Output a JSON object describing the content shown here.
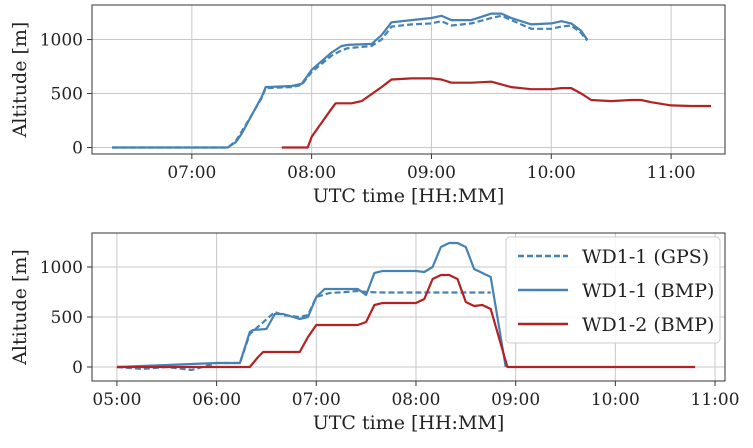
{
  "colors": {
    "blue": "#4682b4",
    "red": "#b22222",
    "grid": "#c8c8c8",
    "axis": "#333333"
  },
  "chart_data": [
    {
      "type": "line",
      "xlabel": "UTC time [HH:MM]",
      "ylabel": "Altitude [m]",
      "xlim": [
        "06:10",
        "11:27"
      ],
      "ylim": [
        -60,
        1320
      ],
      "xticks": [
        "07:00",
        "08:00",
        "09:00",
        "10:00",
        "11:00"
      ],
      "yticks": [
        0,
        500,
        1000
      ],
      "grid": true,
      "series": [
        {
          "name": "WD1-1 (GPS)",
          "color": "blue",
          "dash": true,
          "x": [
            "06:20",
            "07:18",
            "07:22",
            "07:25",
            "07:30",
            "07:35",
            "07:37",
            "07:50",
            "07:55",
            "08:00",
            "08:10",
            "08:15",
            "08:18",
            "08:30",
            "08:35",
            "08:40",
            "08:50",
            "09:00",
            "09:05",
            "09:10",
            "09:20",
            "09:30",
            "09:35",
            "09:40",
            "09:50",
            "10:00",
            "10:05",
            "10:10",
            "10:15",
            "10:18"
          ],
          "y": [
            0,
            0,
            60,
            150,
            300,
            460,
            550,
            560,
            580,
            700,
            850,
            900,
            920,
            940,
            1000,
            1120,
            1140,
            1150,
            1170,
            1130,
            1150,
            1200,
            1220,
            1180,
            1100,
            1100,
            1120,
            1130,
            1060,
            990
          ]
        },
        {
          "name": "WD1-1 (BMP)",
          "color": "blue",
          "dash": false,
          "x": [
            "06:20",
            "07:18",
            "07:22",
            "07:25",
            "07:30",
            "07:35",
            "07:37",
            "07:50",
            "07:55",
            "08:00",
            "08:10",
            "08:15",
            "08:18",
            "08:30",
            "08:35",
            "08:40",
            "08:50",
            "09:00",
            "09:05",
            "09:10",
            "09:20",
            "09:30",
            "09:35",
            "09:40",
            "09:50",
            "10:00",
            "10:05",
            "10:10",
            "10:15",
            "10:18"
          ],
          "y": [
            0,
            0,
            50,
            130,
            300,
            470,
            560,
            570,
            590,
            720,
            880,
            940,
            950,
            960,
            1040,
            1160,
            1180,
            1200,
            1220,
            1180,
            1180,
            1240,
            1240,
            1200,
            1140,
            1150,
            1170,
            1150,
            1080,
            1000
          ]
        },
        {
          "name": "WD1-2 (BMP)",
          "color": "red",
          "dash": false,
          "x": [
            "07:45",
            "07:58",
            "08:00",
            "08:05",
            "08:10",
            "08:12",
            "08:20",
            "08:25",
            "08:35",
            "08:40",
            "08:50",
            "09:00",
            "09:05",
            "09:10",
            "09:20",
            "09:30",
            "09:40",
            "09:50",
            "10:00",
            "10:05",
            "10:10",
            "10:15",
            "10:20",
            "10:30",
            "10:40",
            "10:45",
            "10:50",
            "11:00",
            "11:10",
            "11:20"
          ],
          "y": [
            0,
            0,
            100,
            230,
            360,
            410,
            410,
            430,
            560,
            630,
            640,
            640,
            630,
            600,
            600,
            610,
            560,
            540,
            540,
            550,
            550,
            500,
            440,
            430,
            440,
            440,
            420,
            390,
            385,
            385
          ]
        }
      ]
    },
    {
      "type": "line",
      "xlabel": "UTC time [HH:MM]",
      "ylabel": "Altitude [m]",
      "xlim": [
        "04:45",
        "11:06"
      ],
      "ylim": [
        -140,
        1340
      ],
      "xticks": [
        "05:00",
        "06:00",
        "07:00",
        "08:00",
        "09:00",
        "10:00",
        "11:00"
      ],
      "yticks": [
        0,
        500,
        1000
      ],
      "grid": true,
      "legend": "top-right",
      "series": [
        {
          "name": "WD1-1 (GPS)",
          "color": "blue",
          "dash": true,
          "x": [
            "05:00",
            "05:15",
            "05:30",
            "05:45",
            "06:00",
            "06:14",
            "06:20",
            "06:22",
            "06:35",
            "06:40",
            "06:50",
            "06:55",
            "07:00",
            "07:08",
            "07:18",
            "07:25",
            "07:30",
            "07:40",
            "08:00",
            "08:30",
            "08:45"
          ],
          "y": [
            0,
            -20,
            0,
            -30,
            40,
            40,
            330,
            360,
            550,
            520,
            500,
            520,
            700,
            740,
            750,
            760,
            750,
            745,
            745,
            745,
            745
          ]
        },
        {
          "name": "WD1-1 (BMP)",
          "color": "blue",
          "dash": false,
          "x": [
            "05:00",
            "06:00",
            "06:14",
            "06:20",
            "06:22",
            "06:30",
            "06:35",
            "06:40",
            "06:50",
            "06:55",
            "07:00",
            "07:05",
            "07:25",
            "07:30",
            "07:35",
            "07:40",
            "07:55",
            "08:00",
            "08:05",
            "08:10",
            "08:15",
            "08:20",
            "08:25",
            "08:30",
            "08:35",
            "08:40",
            "08:45",
            "08:52",
            "08:54"
          ],
          "y": [
            0,
            40,
            40,
            350,
            370,
            380,
            530,
            530,
            480,
            500,
            700,
            780,
            780,
            720,
            940,
            960,
            960,
            960,
            950,
            1000,
            1200,
            1240,
            1240,
            1200,
            980,
            940,
            900,
            200,
            0
          ]
        },
        {
          "name": "WD1-2 (BMP)",
          "color": "red",
          "dash": false,
          "x": [
            "05:00",
            "06:20",
            "06:25",
            "06:28",
            "06:50",
            "06:55",
            "07:00",
            "07:05",
            "07:25",
            "07:30",
            "07:35",
            "07:40",
            "08:00",
            "08:05",
            "08:10",
            "08:15",
            "08:20",
            "08:25",
            "08:30",
            "08:35",
            "08:40",
            "08:45",
            "08:55",
            "09:00",
            "10:48"
          ],
          "y": [
            0,
            0,
            100,
            150,
            150,
            300,
            420,
            420,
            420,
            450,
            620,
            640,
            640,
            680,
            880,
            920,
            920,
            880,
            650,
            610,
            620,
            580,
            0,
            0,
            0
          ]
        }
      ]
    }
  ]
}
